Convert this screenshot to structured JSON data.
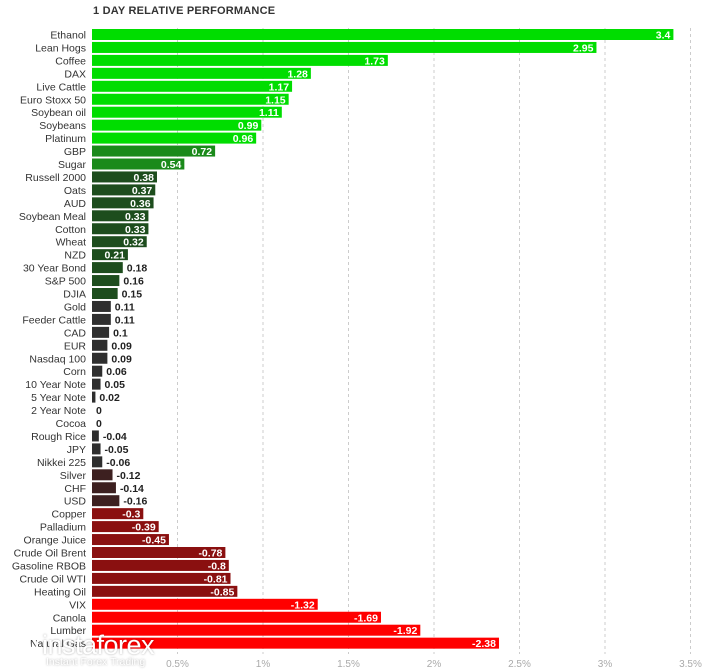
{
  "chart_data": {
    "type": "bar",
    "orientation": "horizontal",
    "title": "1 DAY RELATIVE PERFORMANCE",
    "categories": [
      "Ethanol",
      "Lean Hogs",
      "Coffee",
      "DAX",
      "Live Cattle",
      "Euro Stoxx 50",
      "Soybean oil",
      "Soybeans",
      "Platinum",
      "GBP",
      "Sugar",
      "Russell 2000",
      "Oats",
      "AUD",
      "Soybean Meal",
      "Cotton",
      "Wheat",
      "NZD",
      "30 Year Bond",
      "S&P 500",
      "DJIA",
      "Gold",
      "Feeder Cattle",
      "CAD",
      "EUR",
      "Nasdaq 100",
      "Corn",
      "10 Year Note",
      "5 Year Note",
      "2 Year Note",
      "Cocoa",
      "Rough Rice",
      "JPY",
      "Nikkei 225",
      "Silver",
      "CHF",
      "USD",
      "Copper",
      "Palladium",
      "Orange Juice",
      "Crude Oil Brent",
      "Gasoline RBOB",
      "Crude Oil WTI",
      "Heating Oil",
      "VIX",
      "Canola",
      "Lumber",
      "Natural Gas"
    ],
    "values": [
      3.4,
      2.95,
      1.73,
      1.28,
      1.17,
      1.15,
      1.11,
      0.99,
      0.96,
      0.72,
      0.54,
      0.38,
      0.37,
      0.36,
      0.33,
      0.33,
      0.32,
      0.21,
      0.18,
      0.16,
      0.15,
      0.11,
      0.11,
      0.1,
      0.09,
      0.09,
      0.06,
      0.05,
      0.02,
      0,
      0,
      -0.04,
      -0.05,
      -0.06,
      -0.12,
      -0.14,
      -0.16,
      -0.3,
      -0.39,
      -0.45,
      -0.78,
      -0.8,
      -0.81,
      -0.85,
      -1.32,
      -1.69,
      -1.92,
      -2.38
    ],
    "value_labels": [
      "3.4",
      "2.95",
      "1.73",
      "1.28",
      "1.17",
      "1.15",
      "1.11",
      "0.99",
      "0.96",
      "0.72",
      "0.54",
      "0.38",
      "0.37",
      "0.36",
      "0.33",
      "0.33",
      "0.32",
      "0.21",
      "0.18",
      "0.16",
      "0.15",
      "0.11",
      "0.11",
      "0.1",
      "0.09",
      "0.09",
      "0.06",
      "0.05",
      "0.02",
      "0",
      "0",
      "-0.04",
      "-0.05",
      "-0.06",
      "-0.12",
      "-0.14",
      "-0.16",
      "-0.3",
      "-0.39",
      "-0.45",
      "-0.78",
      "-0.8",
      "-0.81",
      "-0.85",
      "-1.32",
      "-1.69",
      "-1.92",
      "-2.38"
    ],
    "xticks": [
      "0.5%",
      "1%",
      "1.5%",
      "2%",
      "2.5%",
      "3%",
      "3.5%"
    ],
    "xtick_values": [
      0.5,
      1,
      1.5,
      2,
      2.5,
      3,
      3.5
    ],
    "xlim": [
      0,
      3.5
    ],
    "grid": true,
    "colors": {
      "positive_strong": "#00dd00",
      "positive_mid": "#1a8a1a",
      "positive_weak": "#1d4d1d",
      "neutral": "#2e2e2e",
      "negative_weak": "#3d2020",
      "negative_mid": "#8a1010",
      "negative_strong": "#ff0000",
      "grid": "#cccccc"
    }
  },
  "branding": {
    "logo_text": "instaforex",
    "logo_subtitle": "Instant Forex Trading"
  }
}
